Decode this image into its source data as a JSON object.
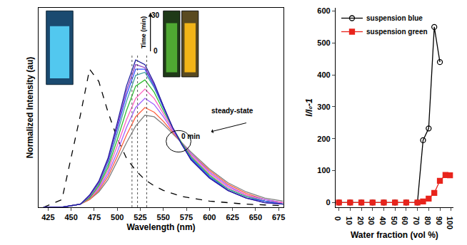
{
  "chart_data": [
    {
      "type": "line",
      "x_label": "Wavelength (nm)",
      "y_label": "Normalized Intensity (au)",
      "x": [
        420,
        440,
        460,
        470,
        480,
        490,
        500,
        510,
        520,
        530,
        540,
        550,
        560,
        570,
        580,
        600,
        620,
        640,
        660,
        680
      ],
      "xlim": [
        415,
        680
      ],
      "xticks": [
        425,
        450,
        475,
        500,
        525,
        550,
        575,
        600,
        625,
        650,
        675
      ],
      "ylim": [
        0,
        1.3
      ],
      "tick_labels": "x",
      "grid": false,
      "reference_lines": [
        516,
        522,
        532
      ],
      "time_label": "Time (min)",
      "time_range": [
        0,
        30
      ],
      "steady_label": "steady-state",
      "steady_time": "0 min",
      "series": [
        {
          "color": "#000000",
          "line_style": "dash",
          "values": [
            0,
            0.05,
            0.6,
            0.9,
            0.82,
            0.62,
            0.45,
            0.32,
            0.24,
            0.18,
            0.14,
            0.11,
            0.09,
            0.07,
            0.06,
            0.04,
            0.03,
            0.02,
            0.015,
            0.01
          ]
        },
        {
          "color": "#808080",
          "line_style": "solid",
          "values": [
            0,
            0,
            0.02,
            0.05,
            0.1,
            0.18,
            0.3,
            0.42,
            0.53,
            0.6,
            0.59,
            0.54,
            0.48,
            0.42,
            0.36,
            0.25,
            0.16,
            0.1,
            0.06,
            0.04
          ]
        },
        {
          "color": "#ff6040",
          "line_style": "solid",
          "values": [
            0,
            0,
            0.02,
            0.05,
            0.11,
            0.2,
            0.33,
            0.47,
            0.59,
            0.65,
            0.62,
            0.56,
            0.49,
            0.42,
            0.35,
            0.24,
            0.15,
            0.09,
            0.05,
            0.03
          ]
        },
        {
          "color": "#a060ff",
          "line_style": "solid",
          "values": [
            0,
            0,
            0.02,
            0.06,
            0.12,
            0.22,
            0.36,
            0.52,
            0.65,
            0.71,
            0.67,
            0.59,
            0.5,
            0.42,
            0.35,
            0.23,
            0.14,
            0.08,
            0.05,
            0.03
          ]
        },
        {
          "color": "#ff60c0",
          "line_style": "solid",
          "values": [
            0,
            0,
            0.02,
            0.06,
            0.13,
            0.24,
            0.4,
            0.57,
            0.71,
            0.77,
            0.71,
            0.61,
            0.51,
            0.42,
            0.34,
            0.22,
            0.13,
            0.08,
            0.04,
            0.03
          ]
        },
        {
          "color": "#30c030",
          "line_style": "solid",
          "values": [
            0,
            0,
            0.02,
            0.06,
            0.14,
            0.26,
            0.44,
            0.63,
            0.79,
            0.83,
            0.75,
            0.63,
            0.52,
            0.42,
            0.33,
            0.21,
            0.12,
            0.07,
            0.04,
            0.02
          ]
        },
        {
          "color": "#40a0a0",
          "line_style": "solid",
          "values": [
            0,
            0,
            0.02,
            0.07,
            0.15,
            0.28,
            0.48,
            0.69,
            0.86,
            0.88,
            0.78,
            0.65,
            0.52,
            0.41,
            0.32,
            0.2,
            0.12,
            0.07,
            0.04,
            0.02
          ]
        },
        {
          "color": "#3050ff",
          "line_style": "solid",
          "values": [
            0,
            0,
            0.02,
            0.07,
            0.16,
            0.3,
            0.51,
            0.73,
            0.9,
            0.9,
            0.79,
            0.65,
            0.52,
            0.41,
            0.32,
            0.2,
            0.11,
            0.06,
            0.04,
            0.02
          ]
        },
        {
          "color": "#9040c0",
          "line_style": "solid",
          "values": [
            0,
            0,
            0.02,
            0.07,
            0.16,
            0.31,
            0.53,
            0.76,
            0.93,
            0.91,
            0.8,
            0.66,
            0.52,
            0.41,
            0.31,
            0.19,
            0.11,
            0.06,
            0.03,
            0.02
          ]
        },
        {
          "color": "#2020a0",
          "line_style": "solid",
          "values": [
            0,
            0,
            0.02,
            0.08,
            0.17,
            0.32,
            0.55,
            0.79,
            0.96,
            0.93,
            0.81,
            0.66,
            0.52,
            0.41,
            0.31,
            0.19,
            0.11,
            0.06,
            0.03,
            0.02
          ]
        }
      ]
    },
    {
      "type": "line",
      "x_label": "Water fraction (vol %)",
      "y_label": "I/I₀-1",
      "xlim": [
        -3,
        102
      ],
      "xticks": [
        0,
        10,
        20,
        30,
        40,
        50,
        60,
        70,
        80,
        90,
        100
      ],
      "ylim": [
        -15,
        610
      ],
      "yticks": [
        0,
        100,
        200,
        300,
        400,
        500,
        600
      ],
      "grid": false,
      "legend": "upper left",
      "series": [
        {
          "name": "suspension blue",
          "color": "#000000",
          "marker": "circle-open",
          "line_style": "solid",
          "x": [
            0,
            10,
            20,
            30,
            40,
            50,
            60,
            70,
            75,
            80,
            85,
            90
          ],
          "values": [
            0,
            0,
            0,
            0,
            0,
            0,
            0,
            0,
            195,
            232,
            550,
            440
          ]
        },
        {
          "name": "suspension green",
          "color": "#e8241c",
          "marker": "square",
          "line_style": "solid",
          "x": [
            0,
            10,
            20,
            30,
            40,
            50,
            60,
            70,
            75,
            80,
            85,
            90,
            95,
            99
          ],
          "values": [
            0,
            0,
            0,
            0,
            0,
            0,
            0,
            0,
            3,
            12,
            30,
            68,
            86,
            85
          ]
        }
      ]
    }
  ]
}
